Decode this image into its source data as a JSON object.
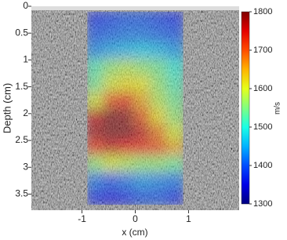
{
  "chart_data": {
    "type": "heatmap",
    "x_label": "x (cm)",
    "y_label": "Depth (cm)",
    "colorbar_label": "m/s",
    "xlim": [
      -1.95,
      1.95
    ],
    "ylim": [
      3.8,
      0
    ],
    "xticks": [
      -1,
      0,
      1
    ],
    "yticks": [
      0,
      0.5,
      1,
      1.5,
      2,
      2.5,
      3,
      3.5
    ],
    "colormap": "jet",
    "clim": [
      1300,
      1800
    ],
    "cticks": [
      1300,
      1400,
      1500,
      1600,
      1700,
      1800
    ],
    "x": [
      -0.75,
      -0.45,
      -0.15,
      0.15,
      0.45,
      0.75
    ],
    "y": [
      0.25,
      0.55,
      0.85,
      1.15,
      1.45,
      1.75,
      2.05,
      2.35,
      2.65,
      2.95,
      3.25,
      3.55
    ],
    "values": [
      [
        1380,
        1390,
        1400,
        1400,
        1390,
        1380
      ],
      [
        1400,
        1410,
        1420,
        1420,
        1410,
        1400
      ],
      [
        1430,
        1450,
        1460,
        1470,
        1460,
        1440
      ],
      [
        1520,
        1560,
        1580,
        1560,
        1540,
        1500
      ],
      [
        1540,
        1600,
        1620,
        1610,
        1560,
        1520
      ],
      [
        1600,
        1700,
        1720,
        1650,
        1580,
        1540
      ],
      [
        1760,
        1800,
        1790,
        1700,
        1620,
        1560
      ],
      [
        1780,
        1800,
        1800,
        1760,
        1680,
        1600
      ],
      [
        1720,
        1760,
        1740,
        1720,
        1700,
        1650
      ],
      [
        1560,
        1600,
        1580,
        1560,
        1560,
        1540
      ],
      [
        1420,
        1400,
        1420,
        1440,
        1430,
        1420
      ],
      [
        1380,
        1360,
        1380,
        1400,
        1400,
        1380
      ]
    ]
  }
}
